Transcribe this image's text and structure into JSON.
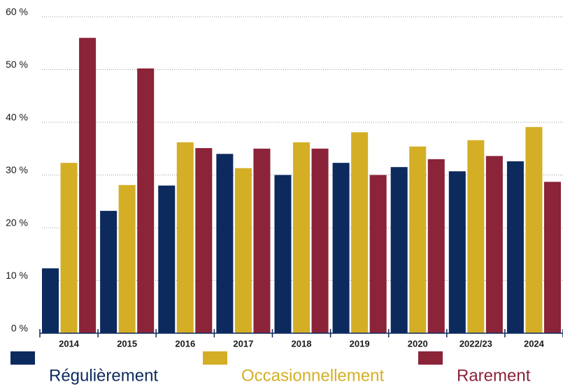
{
  "chart_data": {
    "type": "bar",
    "categories": [
      "2014",
      "2015",
      "2016",
      "2017",
      "2018",
      "2019",
      "2020",
      "2022/23",
      "2024"
    ],
    "series": [
      {
        "name": "Régulièrement",
        "color": "#0d2a5e",
        "values": [
          12.3,
          23.2,
          28,
          34,
          30,
          32.3,
          31.5,
          30.7,
          32.6
        ]
      },
      {
        "name": "Occasionnellement",
        "color": "#d4af26",
        "values": [
          32.3,
          28.1,
          36.2,
          31.3,
          36.2,
          38.1,
          35.4,
          36.6,
          39.1
        ]
      },
      {
        "name": "Rarement",
        "color": "#8b2339",
        "values": [
          56,
          50.2,
          35.1,
          35,
          35,
          30,
          33,
          33.6,
          28.7
        ]
      }
    ],
    "ylim": [
      0,
      60
    ],
    "yticks": [
      {
        "value": 0,
        "label": "0 %"
      },
      {
        "value": 10,
        "label": "10 %"
      },
      {
        "value": 20,
        "label": "20 %"
      },
      {
        "value": 30,
        "label": "30 %"
      },
      {
        "value": 40,
        "label": "40 %"
      },
      {
        "value": 50,
        "label": "50 %"
      },
      {
        "value": 60,
        "label": "60 %"
      }
    ],
    "grid": true
  }
}
